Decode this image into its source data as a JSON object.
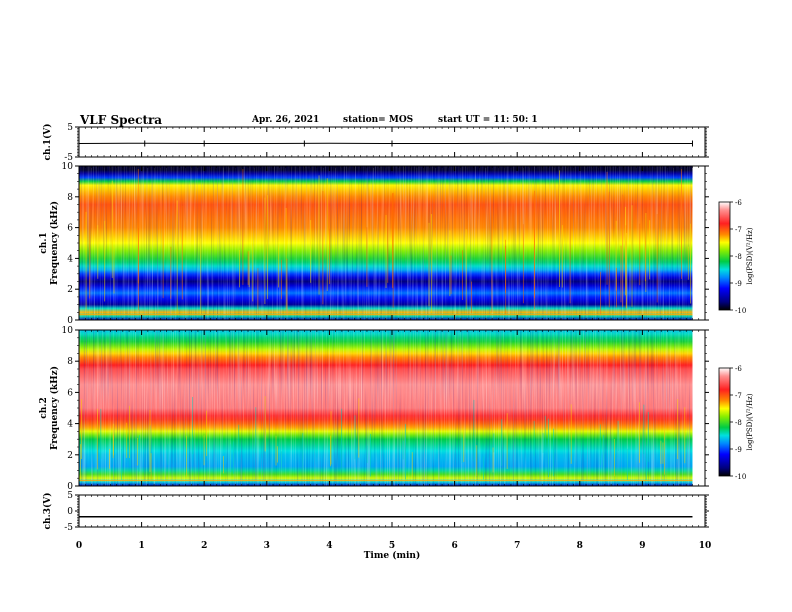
{
  "header": {
    "title": "VLF Spectra",
    "date": "Apr. 26, 2021",
    "station": "station= MOS",
    "start_ut": "start UT =  11: 50: 1"
  },
  "chart_data": [
    {
      "type": "line",
      "panel": "ch1_voltage",
      "ylabel": "ch.1(V)",
      "ylim": [
        -5,
        5
      ],
      "y_ticks": [
        "5",
        "-5"
      ],
      "x": [
        0,
        1,
        2,
        3,
        4,
        5,
        6,
        7,
        8,
        9,
        9.8
      ],
      "values": [
        -0.5,
        -0.4,
        -0.5,
        -0.5,
        -0.4,
        -0.5,
        -0.5,
        -0.4,
        -0.5,
        -0.5,
        -0.5
      ]
    },
    {
      "type": "heatmap",
      "panel": "ch1_spectrogram",
      "ylabel": "ch.1 Frequency (kHz)",
      "ylim": [
        0,
        10
      ],
      "y_ticks": [
        "0",
        "2",
        "4",
        "6",
        "8",
        "10"
      ],
      "xlim": [
        0,
        10
      ],
      "data_end_min": 9.8,
      "log_psd_profile": [
        {
          "f": 0.0,
          "v": -9.5
        },
        {
          "f": 0.5,
          "v": -7.3
        },
        {
          "f": 1.0,
          "v": -9.6
        },
        {
          "f": 1.8,
          "v": -8.8
        },
        {
          "f": 2.5,
          "v": -9.7
        },
        {
          "f": 3.3,
          "v": -8.6
        },
        {
          "f": 4.0,
          "v": -8.1
        },
        {
          "f": 5.0,
          "v": -7.5
        },
        {
          "f": 6.0,
          "v": -7.2
        },
        {
          "f": 7.5,
          "v": -7.0
        },
        {
          "f": 8.8,
          "v": -7.5
        },
        {
          "f": 9.3,
          "v": -9.2
        },
        {
          "f": 9.7,
          "v": -9.9
        },
        {
          "f": 10.0,
          "v": -9.9
        }
      ]
    },
    {
      "type": "heatmap",
      "panel": "ch2_spectrogram",
      "ylabel": "ch.2 Frequency (kHz)",
      "ylim": [
        0,
        10
      ],
      "y_ticks": [
        "0",
        "2",
        "4",
        "6",
        "8",
        "10"
      ],
      "xlim": [
        0,
        10
      ],
      "data_end_min": 9.8,
      "log_psd_profile": [
        {
          "f": 0.0,
          "v": -9.5
        },
        {
          "f": 0.5,
          "v": -7.6
        },
        {
          "f": 1.2,
          "v": -8.7
        },
        {
          "f": 2.0,
          "v": -8.6
        },
        {
          "f": 3.0,
          "v": -8.2
        },
        {
          "f": 3.8,
          "v": -7.2
        },
        {
          "f": 5.0,
          "v": -6.4
        },
        {
          "f": 6.5,
          "v": -6.3
        },
        {
          "f": 7.5,
          "v": -6.6
        },
        {
          "f": 8.5,
          "v": -7.4
        },
        {
          "f": 9.2,
          "v": -8.1
        },
        {
          "f": 10.0,
          "v": -8.6
        }
      ]
    },
    {
      "type": "line",
      "panel": "ch3_voltage",
      "ylabel": "ch.3(V)",
      "ylim": [
        -5,
        5
      ],
      "y_ticks": [
        "5",
        "0",
        "-5"
      ],
      "x": [
        0,
        9.8
      ],
      "values": [
        -1.8,
        -1.8
      ],
      "xlabel": "Time  (min)",
      "x_ticks": [
        "0",
        "1",
        "2",
        "3",
        "4",
        "5",
        "6",
        "7",
        "8",
        "9",
        "10"
      ]
    }
  ],
  "colorbar": {
    "label": "log(PSD)(V²/Hz)",
    "range": [
      -10,
      -6
    ],
    "ticks": [
      "-6",
      "-7",
      "-8",
      "-9",
      "-10"
    ],
    "stops": [
      {
        "v": -10,
        "color": "#000000"
      },
      {
        "v": -9.7,
        "color": "#00007f"
      },
      {
        "v": -9.2,
        "color": "#0000ff"
      },
      {
        "v": -8.8,
        "color": "#0088ff"
      },
      {
        "v": -8.5,
        "color": "#00e0e0"
      },
      {
        "v": -8.2,
        "color": "#00cc44"
      },
      {
        "v": -7.8,
        "color": "#88ee00"
      },
      {
        "v": -7.5,
        "color": "#ffff00"
      },
      {
        "v": -7.2,
        "color": "#ff8800"
      },
      {
        "v": -6.8,
        "color": "#ff2020"
      },
      {
        "v": -6.3,
        "color": "#ff9090"
      },
      {
        "v": -6,
        "color": "#ffffff"
      }
    ]
  }
}
